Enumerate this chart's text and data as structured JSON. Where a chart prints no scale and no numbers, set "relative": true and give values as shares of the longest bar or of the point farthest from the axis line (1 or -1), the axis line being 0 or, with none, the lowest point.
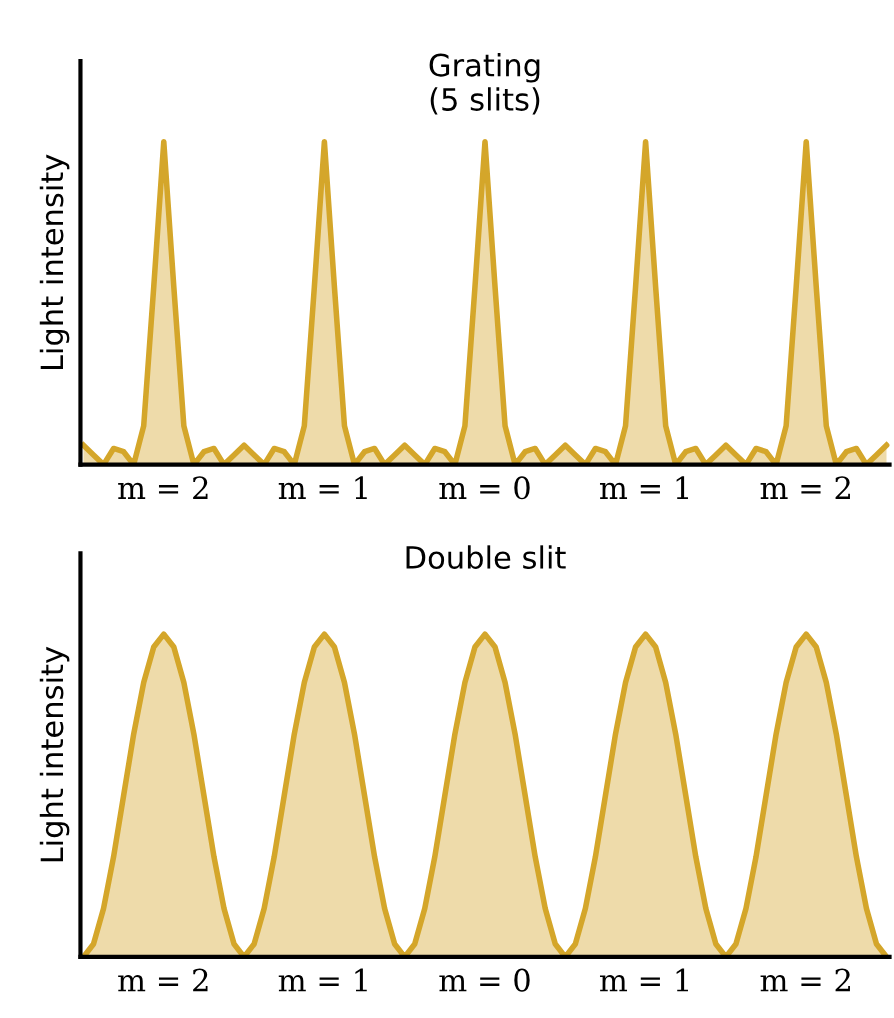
{
  "chart_data": [
    {
      "type": "area",
      "title": "Grating\n(5 slits)",
      "ylabel": "Light intensity",
      "relative": true,
      "tick_labels": "x",
      "categories": [
        null,
        null,
        null,
        null,
        null,
        null,
        null,
        null,
        "m = 2",
        null,
        null,
        null,
        null,
        null,
        null,
        null,
        null,
        null,
        null,
        null,
        null,
        null,
        null,
        null,
        "m = 1",
        null,
        null,
        null,
        null,
        null,
        null,
        null,
        null,
        null,
        null,
        null,
        null,
        null,
        null,
        null,
        "m = 0",
        null,
        null,
        null,
        null,
        null,
        null,
        null,
        null,
        null,
        null,
        null,
        null,
        null,
        null,
        null,
        "m = 1",
        null,
        null,
        null,
        null,
        null,
        null,
        null,
        null,
        null,
        null,
        null,
        null,
        null,
        null,
        null,
        "m = 2",
        null,
        null,
        null,
        null,
        null,
        null,
        null,
        null
      ],
      "series": [
        {
          "color": "#d4a62a",
          "values": [
            0.06,
            0.03,
            0.0,
            0.05,
            0.04,
            0.0,
            0.12,
            0.55,
            1.0,
            0.55,
            0.12,
            0.0,
            0.04,
            0.05,
            0.0,
            0.03,
            0.06,
            0.03,
            0.0,
            0.05,
            0.04,
            0.0,
            0.12,
            0.55,
            1.0,
            0.55,
            0.12,
            0.0,
            0.04,
            0.05,
            0.0,
            0.03,
            0.06,
            0.03,
            0.0,
            0.05,
            0.04,
            0.0,
            0.12,
            0.55,
            1.0,
            0.55,
            0.12,
            0.0,
            0.04,
            0.05,
            0.0,
            0.03,
            0.06,
            0.03,
            0.0,
            0.05,
            0.04,
            0.0,
            0.12,
            0.55,
            1.0,
            0.55,
            0.12,
            0.0,
            0.04,
            0.05,
            0.0,
            0.03,
            0.06,
            0.03,
            0.0,
            0.05,
            0.04,
            0.0,
            0.12,
            0.55,
            1.0,
            0.55,
            0.12,
            0.0,
            0.04,
            0.05,
            0.0,
            0.03,
            0.06
          ]
        }
      ]
    },
    {
      "type": "area",
      "title": "Double slit",
      "ylabel": "Light intensity",
      "relative": true,
      "tick_labels": "x",
      "categories": [
        null,
        null,
        null,
        null,
        null,
        null,
        null,
        null,
        "m = 2",
        null,
        null,
        null,
        null,
        null,
        null,
        null,
        null,
        null,
        null,
        null,
        null,
        null,
        null,
        null,
        "m = 1",
        null,
        null,
        null,
        null,
        null,
        null,
        null,
        null,
        null,
        null,
        null,
        null,
        null,
        null,
        null,
        "m = 0",
        null,
        null,
        null,
        null,
        null,
        null,
        null,
        null,
        null,
        null,
        null,
        null,
        null,
        null,
        null,
        "m = 1",
        null,
        null,
        null,
        null,
        null,
        null,
        null,
        null,
        null,
        null,
        null,
        null,
        null,
        null,
        null,
        "m = 2",
        null,
        null,
        null,
        null,
        null,
        null,
        null,
        null
      ],
      "series": [
        {
          "color": "#d4a62a",
          "values": [
            0.0,
            0.04,
            0.15,
            0.31,
            0.5,
            0.69,
            0.85,
            0.96,
            1.0,
            0.96,
            0.85,
            0.69,
            0.5,
            0.31,
            0.15,
            0.04,
            0.0,
            0.04,
            0.15,
            0.31,
            0.5,
            0.69,
            0.85,
            0.96,
            1.0,
            0.96,
            0.85,
            0.69,
            0.5,
            0.31,
            0.15,
            0.04,
            0.0,
            0.04,
            0.15,
            0.31,
            0.5,
            0.69,
            0.85,
            0.96,
            1.0,
            0.96,
            0.85,
            0.69,
            0.5,
            0.31,
            0.15,
            0.04,
            0.0,
            0.04,
            0.15,
            0.31,
            0.5,
            0.69,
            0.85,
            0.96,
            1.0,
            0.96,
            0.85,
            0.69,
            0.5,
            0.31,
            0.15,
            0.04,
            0.0,
            0.04,
            0.15,
            0.31,
            0.5,
            0.69,
            0.85,
            0.96,
            1.0,
            0.96,
            0.85,
            0.69,
            0.5,
            0.31,
            0.15,
            0.04,
            0.0
          ]
        }
      ]
    }
  ]
}
